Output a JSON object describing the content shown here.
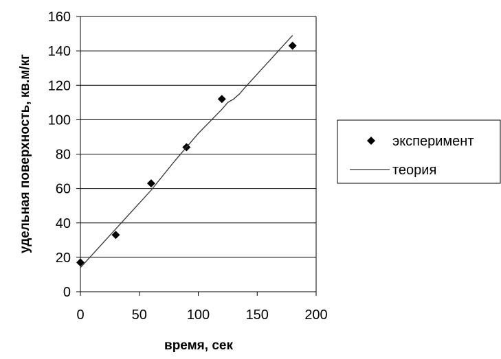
{
  "chart_data": {
    "type": "scatter",
    "xlabel": "время, сек",
    "ylabel": "удельная поверхность, кв.м/кг",
    "xlim": [
      0,
      200
    ],
    "ylim": [
      0,
      160
    ],
    "x_ticks": [
      "0",
      "50",
      "100",
      "150",
      "200"
    ],
    "y_ticks": [
      "0",
      "20",
      "40",
      "60",
      "80",
      "100",
      "120",
      "140",
      "160"
    ],
    "grid": "horizontal",
    "legend_position": "right",
    "series": [
      {
        "name": "эксперимент",
        "kind": "markers",
        "marker": "diamond",
        "color": "#000000",
        "x": [
          0,
          30,
          60,
          90,
          120,
          180
        ],
        "y": [
          17,
          33,
          63,
          84,
          112,
          143
        ]
      },
      {
        "name": "теория",
        "kind": "line",
        "color": "#333333",
        "x": [
          0,
          20,
          40,
          60,
          80,
          100,
          120,
          125,
          130,
          135,
          140,
          160,
          180
        ],
        "y": [
          14,
          29,
          44,
          59,
          76,
          92,
          106,
          110,
          112,
          115,
          119,
          134,
          149
        ]
      }
    ]
  }
}
